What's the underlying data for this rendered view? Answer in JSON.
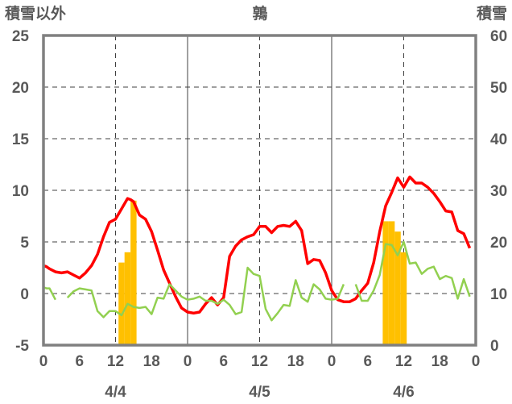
{
  "chart_data": {
    "type": "line",
    "title": "鶉",
    "left_axis_label": "積雪以外",
    "right_axis_label": "積雪",
    "ylim_left": [
      -5,
      25
    ],
    "ylim_right": [
      0,
      60
    ],
    "yticks_left": [
      "25",
      "20",
      "15",
      "10",
      "5",
      "0",
      "-5"
    ],
    "yticks_right": [
      "60",
      "50",
      "40",
      "30",
      "20",
      "10",
      "0"
    ],
    "x_range_hours": [
      0,
      72
    ],
    "x_tick_labels": [
      "0",
      "6",
      "12",
      "18",
      "0",
      "6",
      "12",
      "18",
      "0",
      "6",
      "12",
      "18",
      "0"
    ],
    "dates": [
      "4/4",
      "4/5",
      "4/6"
    ],
    "colors": {
      "temperature": "#ff0000",
      "green_series": "#92d050",
      "snowfall_bars": "#ffc000",
      "snow_depth": "#7030a0",
      "frame": "#808080"
    },
    "series": [
      {
        "axis": "left",
        "color": "#ff0000",
        "values": [
          [
            0,
            2.7
          ],
          [
            0.5,
            2.6
          ],
          [
            1,
            2.4
          ],
          [
            2,
            2.1
          ],
          [
            3,
            2.0
          ],
          [
            4,
            2.1
          ],
          [
            5,
            1.8
          ],
          [
            6,
            1.5
          ],
          [
            7,
            2.0
          ],
          [
            8,
            2.7
          ],
          [
            9,
            3.8
          ],
          [
            10,
            5.5
          ],
          [
            11,
            6.9
          ],
          [
            12,
            7.2
          ],
          [
            13,
            8.2
          ],
          [
            14,
            9.2
          ],
          [
            14.5,
            9.1
          ],
          [
            15,
            8.9
          ],
          [
            16,
            7.6
          ],
          [
            17,
            7.2
          ],
          [
            18,
            6.0
          ],
          [
            19,
            4.2
          ],
          [
            20,
            2.3
          ],
          [
            21,
            1.0
          ],
          [
            22,
            -0.3
          ],
          [
            23,
            -1.4
          ],
          [
            24,
            -1.8
          ],
          [
            25,
            -1.9
          ],
          [
            26,
            -1.8
          ],
          [
            27,
            -1.0
          ],
          [
            28,
            -0.4
          ],
          [
            29,
            -1.1
          ],
          [
            30,
            -0.4
          ],
          [
            31,
            3.6
          ],
          [
            32,
            4.6
          ],
          [
            33,
            5.2
          ],
          [
            34,
            5.5
          ],
          [
            35,
            5.7
          ],
          [
            36,
            6.5
          ],
          [
            37,
            6.5
          ],
          [
            38,
            5.9
          ],
          [
            39,
            6.5
          ],
          [
            40,
            6.6
          ],
          [
            41,
            6.5
          ],
          [
            42,
            7.0
          ],
          [
            43,
            6.1
          ],
          [
            44,
            2.9
          ],
          [
            45,
            3.3
          ],
          [
            46,
            3.2
          ],
          [
            47,
            2.0
          ],
          [
            48,
            0.3
          ],
          [
            49,
            -0.6
          ],
          [
            50,
            -0.8
          ],
          [
            51,
            -0.8
          ],
          [
            52,
            -0.5
          ],
          [
            53,
            0.3
          ],
          [
            54,
            1.0
          ],
          [
            55,
            3.0
          ],
          [
            56,
            6.0
          ],
          [
            57,
            8.5
          ],
          [
            58,
            9.8
          ],
          [
            59,
            11.2
          ],
          [
            60,
            10.3
          ],
          [
            61,
            11.3
          ],
          [
            62,
            10.7
          ],
          [
            63,
            10.7
          ],
          [
            64,
            10.3
          ],
          [
            65,
            9.7
          ],
          [
            66,
            8.9
          ],
          [
            67,
            8.0
          ],
          [
            68,
            7.9
          ],
          [
            69,
            6.1
          ],
          [
            70,
            5.8
          ],
          [
            71,
            4.4
          ]
        ]
      },
      {
        "axis": "left",
        "color": "#92d050",
        "values": [
          [
            0,
            0.6
          ],
          [
            0.5,
            0.5
          ],
          [
            1,
            0.5
          ],
          [
            2,
            -0.6
          ],
          [
            3,
            null
          ],
          [
            4,
            -0.4
          ],
          [
            5,
            0.2
          ],
          [
            6,
            0.5
          ],
          [
            7,
            0.4
          ],
          [
            8,
            0.3
          ],
          [
            9,
            -1.7
          ],
          [
            10,
            -2.3
          ],
          [
            11,
            -1.7
          ],
          [
            12,
            -1.7
          ],
          [
            13,
            -2.1
          ],
          [
            14,
            -1.0
          ],
          [
            15,
            -1.3
          ],
          [
            16,
            -1.4
          ],
          [
            17,
            -1.3
          ],
          [
            18,
            -2.0
          ],
          [
            19,
            -0.4
          ],
          [
            20,
            -0.5
          ],
          [
            21,
            0.9
          ],
          [
            22,
            0.3
          ],
          [
            23,
            -0.3
          ],
          [
            24,
            -0.6
          ],
          [
            25,
            -0.5
          ],
          [
            26,
            -0.3
          ],
          [
            27,
            -0.7
          ],
          [
            28,
            -0.7
          ],
          [
            29,
            -1.0
          ],
          [
            30,
            -0.6
          ],
          [
            31,
            -1.1
          ],
          [
            32,
            -2.0
          ],
          [
            33,
            -1.8
          ],
          [
            34,
            2.5
          ],
          [
            35,
            1.9
          ],
          [
            36,
            1.7
          ],
          [
            37,
            -1.5
          ],
          [
            38,
            -2.6
          ],
          [
            39,
            -1.9
          ],
          [
            40,
            -1.1
          ],
          [
            41,
            -1.2
          ],
          [
            42,
            1.3
          ],
          [
            43,
            -0.4
          ],
          [
            44,
            -0.8
          ],
          [
            45,
            0.9
          ],
          [
            46,
            0.4
          ],
          [
            47,
            -0.5
          ],
          [
            48,
            -0.6
          ],
          [
            49,
            -0.5
          ],
          [
            50,
            0.9
          ],
          [
            51,
            null
          ],
          [
            52,
            0.9
          ],
          [
            53,
            -0.7
          ],
          [
            54,
            -0.7
          ],
          [
            55,
            0.3
          ],
          [
            56,
            1.8
          ],
          [
            57,
            4.8
          ],
          [
            58,
            4.7
          ],
          [
            59,
            3.7
          ],
          [
            60,
            5.0
          ],
          [
            61,
            2.9
          ],
          [
            62,
            3.0
          ],
          [
            63,
            1.9
          ],
          [
            64,
            2.4
          ],
          [
            65,
            2.6
          ],
          [
            66,
            1.4
          ],
          [
            67,
            1.7
          ],
          [
            68,
            1.5
          ],
          [
            69,
            -0.5
          ],
          [
            70,
            1.4
          ],
          [
            71,
            -0.3
          ]
        ]
      },
      {
        "axis": "right",
        "color": "#7030a0",
        "values": [
          [
            0,
            0
          ],
          [
            72,
            0
          ]
        ]
      }
    ],
    "bars": {
      "axis": "right",
      "color": "#ffc000",
      "values": [
        [
          13,
          16
        ],
        [
          14,
          18
        ],
        [
          15,
          28
        ],
        [
          57,
          24
        ],
        [
          58,
          24
        ],
        [
          59,
          22
        ],
        [
          60,
          18
        ]
      ]
    }
  }
}
